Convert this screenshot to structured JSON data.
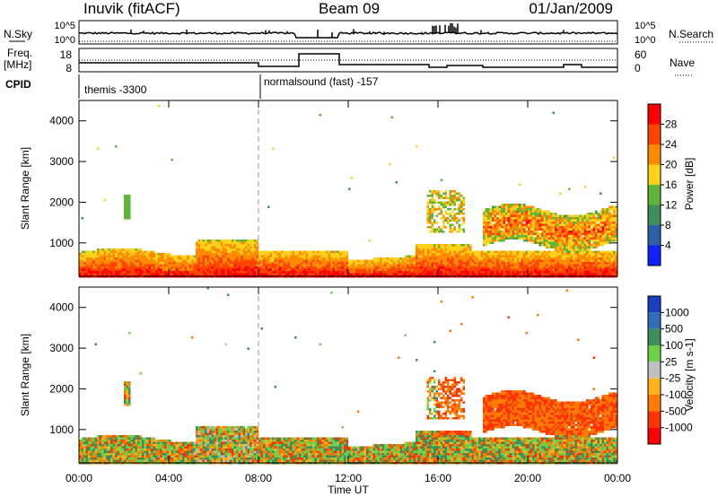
{
  "header": {
    "station": "Inuvik (fitACF)",
    "beam": "Beam 09",
    "date": "01/Jan/2009"
  },
  "status_panel": {
    "nsky_label": "N.Sky",
    "nsearch_label": "N.Search",
    "freq_label": "Freq.",
    "freq_unit": "[MHz]",
    "nave_label": "Nave",
    "cpid_label": "CPID",
    "left_ticks": [
      "10^5",
      "10^0"
    ],
    "right_ticks": [
      "10^5",
      "10^0"
    ],
    "freq_ticks": [
      "18",
      "8"
    ],
    "nave_ticks": [
      "60",
      "0"
    ],
    "cpid_segments": [
      {
        "label": "themis -3300",
        "start_hour": 0
      },
      {
        "label": "normalsound (fast) -157",
        "start_hour": 8
      }
    ]
  },
  "chart_data": [
    {
      "type": "heatmap",
      "title": "",
      "ylabel": "Slant Range [km]",
      "xlabel": "",
      "xlim": [
        0,
        24
      ],
      "ylim": [
        180,
        4500
      ],
      "yticks": [
        1000,
        2000,
        3000,
        4000
      ],
      "colorbar": {
        "label": "Power [dB]",
        "ticks": [
          "28",
          "24",
          "20",
          "16",
          "12",
          "8",
          "4"
        ],
        "colors": [
          "#ff0000",
          "#ff4400",
          "#ff8c00",
          "#ffd21a",
          "#5fb53a",
          "#3a8f5a",
          "#2d5fa8",
          "#1020ff"
        ]
      },
      "marker": {
        "x": 8,
        "style": "dashed"
      }
    },
    {
      "type": "heatmap",
      "title": "",
      "ylabel": "Slant Range [km]",
      "xlabel": "Time UT",
      "xlim": [
        0,
        24
      ],
      "ylim": [
        180,
        4500
      ],
      "yticks": [
        1000,
        2000,
        3000,
        4000
      ],
      "xticks": [
        "00:00",
        "04:00",
        "08:00",
        "12:00",
        "16:00",
        "20:00",
        "00:00"
      ],
      "colorbar": {
        "label": "Velocity [m s-1]",
        "ticks": [
          "1000",
          "500",
          "100",
          "25",
          "-25",
          "-100",
          "-500",
          "-1000"
        ],
        "colors": [
          "#1a3fbf",
          "#2f6fb5",
          "#3a8f5a",
          "#6ed14a",
          "#c0c0c0",
          "#ffb21a",
          "#ff7a00",
          "#ff3300",
          "#ff0000"
        ]
      },
      "marker": {
        "x": 8,
        "style": "dashed"
      }
    }
  ]
}
